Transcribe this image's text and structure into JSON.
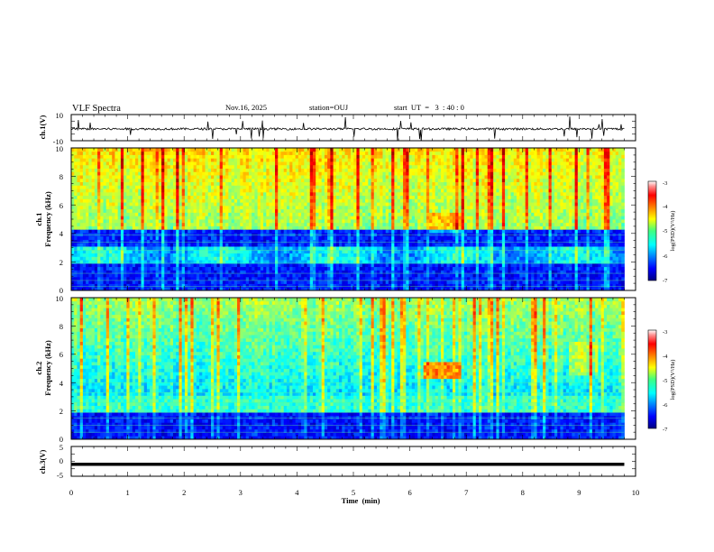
{
  "header": {
    "title": "VLF Spectra",
    "date": "Nov.16, 2025",
    "station": "station=OUJ",
    "start": "start  UT  =   3  : 40 : 0"
  },
  "chart_data": [
    {
      "type": "line",
      "title": "ch.1 waveform",
      "ylabel": "ch.1(V)",
      "ylim": [
        -10,
        10
      ],
      "yticks": [
        "10",
        "-10"
      ],
      "baseline": -1,
      "x": [
        0,
        1,
        2,
        3,
        4,
        5,
        6,
        7,
        8,
        9,
        9.8
      ],
      "values": [
        -1,
        -1,
        -1,
        -1,
        -1,
        -1,
        -1,
        -1,
        -1,
        -1,
        -1
      ]
    },
    {
      "type": "heatmap",
      "title": "ch.1 spectrogram",
      "ylabel": "ch.1\nFrequency  (kHz)",
      "ylabel_lines": [
        "ch.1",
        "Frequency  (kHz)"
      ],
      "ylim": [
        0,
        10
      ],
      "yticks": [
        "0",
        "2",
        "4",
        "6",
        "8",
        "10"
      ],
      "xlim": [
        0,
        10
      ],
      "data_end_min": 9.8,
      "colorbar": {
        "label": "log(PSD)(V²/Hz)",
        "range": [
          -7,
          -3
        ],
        "ticks": [
          "-3",
          "-4",
          "-5",
          "-6",
          "-7"
        ]
      }
    },
    {
      "type": "heatmap",
      "title": "ch.2 spectrogram",
      "ylabel": "ch.2\nFrequency  (kHz)",
      "ylabel_lines": [
        "ch.2",
        "Frequency  (kHz)"
      ],
      "ylim": [
        0,
        10
      ],
      "yticks": [
        "0",
        "2",
        "4",
        "6",
        "8",
        "10"
      ],
      "xlim": [
        0,
        10
      ],
      "data_end_min": 9.8,
      "colorbar": {
        "label": "log(PSD)(V²/Hz)",
        "range": [
          -7,
          -3
        ],
        "ticks": [
          "-3",
          "-4",
          "-5",
          "-6",
          "-7"
        ]
      }
    },
    {
      "type": "line",
      "title": "ch.3 waveform",
      "ylabel": "ch.3(V)",
      "ylim": [
        -5,
        5
      ],
      "yticks": [
        "5",
        "0",
        "-5"
      ],
      "x": [
        0,
        9.8
      ],
      "values": [
        -1,
        -1
      ]
    }
  ],
  "xaxis": {
    "label": "Time  (min)",
    "ticks": [
      "0",
      "1",
      "2",
      "3",
      "4",
      "5",
      "6",
      "7",
      "8",
      "9",
      "10"
    ],
    "xlim": [
      0,
      10
    ]
  }
}
